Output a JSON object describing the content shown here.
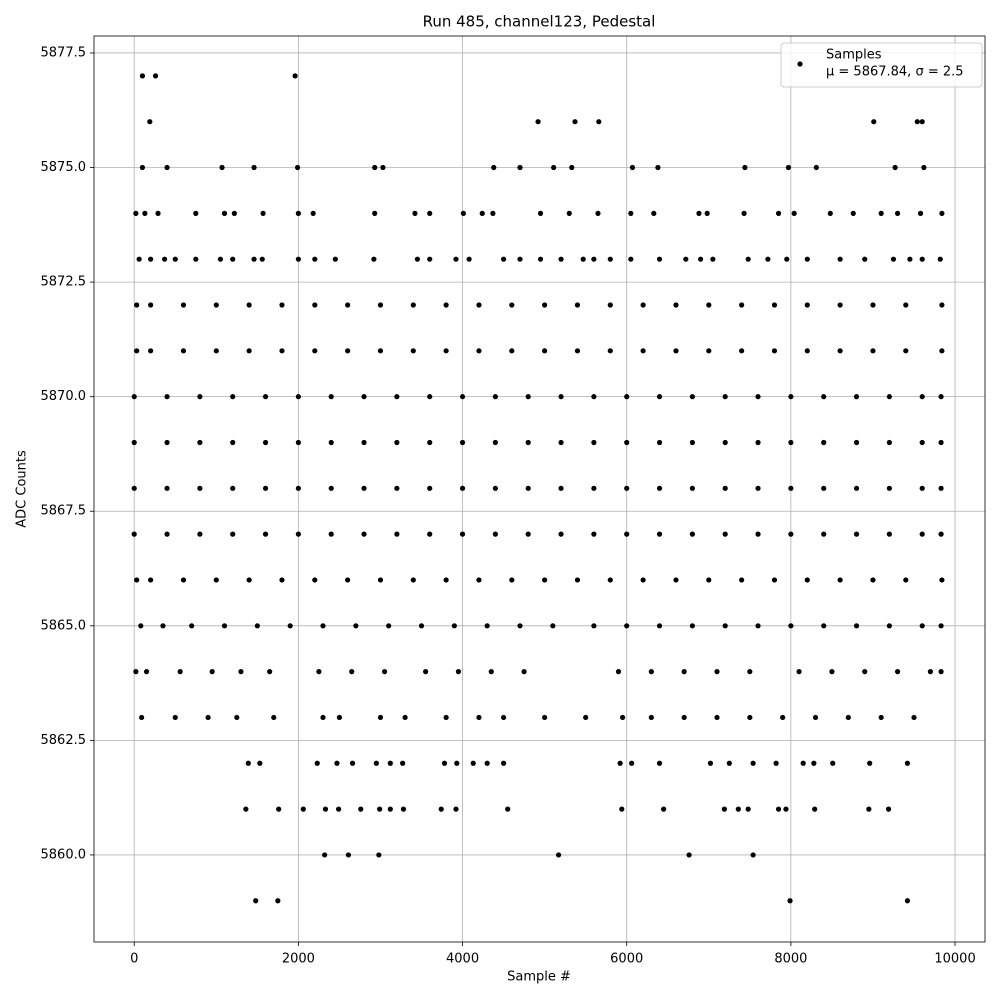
{
  "chart_data": {
    "type": "scatter",
    "title": "Run 485, channel123, Pedestal",
    "xlabel": "Sample #",
    "ylabel": "ADC Counts",
    "xlim": [
      -490,
      10365
    ],
    "ylim": [
      5858.1,
      5877.87
    ],
    "xticks": [
      0,
      2000,
      4000,
      6000,
      8000,
      10000
    ],
    "yticks": [
      {
        "value": 5860,
        "label": "5860.0"
      },
      {
        "value": 5862.5,
        "label": "5862.5"
      },
      {
        "value": 5865,
        "label": "5865.0"
      },
      {
        "value": 5867.5,
        "label": "5867.5"
      },
      {
        "value": 5870,
        "label": "5870.0"
      },
      {
        "value": 5872.5,
        "label": "5872.5"
      },
      {
        "value": 5875,
        "label": "5875.0"
      },
      {
        "value": 5877.5,
        "label": "5877.5"
      }
    ],
    "grid": true,
    "legend_position": "upper right",
    "series": [
      {
        "name": "Samples",
        "label": "μ = 5867.84, σ = 2.5",
        "color": "#000000",
        "x": [
          100,
          260,
          1960,
          190,
          4920,
          5370,
          5660,
          9010,
          9540,
          9600,
          100,
          400,
          1070,
          1460,
          1990,
          2930,
          3030,
          4380,
          4700,
          5110,
          5330,
          6070,
          6380,
          7440,
          7970,
          8310,
          9270,
          9620,
          20,
          130,
          290,
          750,
          1100,
          1220,
          1570,
          2000,
          2180,
          2930,
          3420,
          3600,
          4010,
          4240,
          4370,
          4950,
          5300,
          5650,
          6050,
          6330,
          6880,
          6980,
          7430,
          7850,
          8040,
          8480,
          8760,
          9100,
          9300,
          9580,
          9840,
          60,
          200,
          370,
          500,
          750,
          1050,
          1200,
          1460,
          1560,
          2000,
          2200,
          2450,
          2920,
          3450,
          3600,
          3920,
          4080,
          4500,
          4700,
          4950,
          5200,
          5470,
          5600,
          5800,
          6050,
          6400,
          6720,
          6900,
          7050,
          7480,
          7720,
          7950,
          8200,
          8600,
          8900,
          9250,
          9450,
          9600,
          9820,
          30,
          200,
          600,
          1000,
          1400,
          1800,
          2200,
          2600,
          3000,
          3400,
          3800,
          4200,
          4600,
          5000,
          5400,
          5800,
          6200,
          6600,
          7000,
          7400,
          7800,
          8200,
          8600,
          9000,
          9400,
          9840,
          30,
          200,
          600,
          1000,
          1400,
          1800,
          2200,
          2600,
          3000,
          3400,
          3800,
          4200,
          4600,
          5000,
          5400,
          5800,
          6200,
          6600,
          7000,
          7400,
          7800,
          8200,
          8600,
          9000,
          9400,
          9840,
          0,
          400,
          800,
          1200,
          1600,
          2000,
          2400,
          2800,
          3200,
          3600,
          4000,
          4400,
          4800,
          5200,
          5600,
          6000,
          6400,
          6800,
          7200,
          7600,
          8000,
          8400,
          8800,
          9200,
          9600,
          9830,
          0,
          400,
          800,
          1200,
          1600,
          2000,
          2400,
          2800,
          3200,
          3600,
          4000,
          4400,
          4800,
          5200,
          5600,
          6000,
          6400,
          6800,
          7200,
          7600,
          8000,
          8400,
          8800,
          9200,
          9600,
          9830,
          0,
          400,
          800,
          1200,
          1600,
          2000,
          2400,
          2800,
          3200,
          3600,
          4000,
          4400,
          4800,
          5200,
          5600,
          6000,
          6400,
          6800,
          7200,
          7600,
          8000,
          8400,
          8800,
          9200,
          9600,
          9830,
          0,
          400,
          800,
          1200,
          1600,
          2000,
          2400,
          2800,
          3200,
          3600,
          4000,
          4400,
          4800,
          5200,
          5600,
          6000,
          6400,
          6800,
          7200,
          7600,
          8000,
          8400,
          8800,
          9200,
          9600,
          9830,
          30,
          200,
          600,
          1000,
          1400,
          1800,
          2200,
          2600,
          3000,
          3400,
          3800,
          4200,
          4600,
          5000,
          5400,
          5800,
          6200,
          6600,
          7000,
          7400,
          7800,
          8200,
          8600,
          9000,
          9400,
          9840,
          80,
          350,
          700,
          1100,
          1500,
          1900,
          2300,
          2700,
          3100,
          3500,
          3900,
          4300,
          4700,
          5100,
          5600,
          6000,
          6400,
          6800,
          7200,
          7600,
          8000,
          8400,
          8800,
          9200,
          9600,
          9830,
          20,
          150,
          560,
          950,
          1300,
          1650,
          2250,
          2650,
          3050,
          3550,
          3950,
          4350,
          4750,
          5900,
          6300,
          6700,
          7100,
          7500,
          8100,
          8500,
          8900,
          9300,
          9700,
          9830,
          90,
          500,
          900,
          1250,
          1700,
          2300,
          2500,
          3000,
          3300,
          3800,
          4200,
          4500,
          5000,
          5500,
          5950,
          6300,
          6700,
          7100,
          7500,
          7900,
          8300,
          8700,
          9100,
          9500,
          1390,
          1530,
          2230,
          2470,
          2660,
          2950,
          3120,
          3270,
          3780,
          3930,
          4130,
          4300,
          4500,
          5920,
          6060,
          6400,
          7020,
          7250,
          7540,
          7820,
          8150,
          8280,
          8510,
          8960,
          9420,
          1360,
          1760,
          2060,
          2330,
          2490,
          2760,
          2990,
          3120,
          3280,
          3740,
          3920,
          4550,
          5940,
          6450,
          7190,
          7360,
          7480,
          7850,
          7940,
          8290,
          8950,
          9190,
          2320,
          2610,
          2980,
          5170,
          6760,
          7540,
          1480,
          1750,
          7990,
          9420
        ],
        "values": [
          5877,
          5877,
          5877,
          5876,
          5876,
          5876,
          5876,
          5876,
          5876,
          5876,
          5875,
          5875,
          5875,
          5875,
          5875,
          5875,
          5875,
          5875,
          5875,
          5875,
          5875,
          5875,
          5875,
          5875,
          5875,
          5875,
          5875,
          5875,
          5874,
          5874,
          5874,
          5874,
          5874,
          5874,
          5874,
          5874,
          5874,
          5874,
          5874,
          5874,
          5874,
          5874,
          5874,
          5874,
          5874,
          5874,
          5874,
          5874,
          5874,
          5874,
          5874,
          5874,
          5874,
          5874,
          5874,
          5874,
          5874,
          5874,
          5874,
          5873,
          5873,
          5873,
          5873,
          5873,
          5873,
          5873,
          5873,
          5873,
          5873,
          5873,
          5873,
          5873,
          5873,
          5873,
          5873,
          5873,
          5873,
          5873,
          5873,
          5873,
          5873,
          5873,
          5873,
          5873,
          5873,
          5873,
          5873,
          5873,
          5873,
          5873,
          5873,
          5873,
          5873,
          5873,
          5873,
          5873,
          5873,
          5873,
          5872,
          5872,
          5872,
          5872,
          5872,
          5872,
          5872,
          5872,
          5872,
          5872,
          5872,
          5872,
          5872,
          5872,
          5872,
          5872,
          5872,
          5872,
          5872,
          5872,
          5872,
          5872,
          5872,
          5872,
          5872,
          5872,
          5871,
          5871,
          5871,
          5871,
          5871,
          5871,
          5871,
          5871,
          5871,
          5871,
          5871,
          5871,
          5871,
          5871,
          5871,
          5871,
          5871,
          5871,
          5871,
          5871,
          5871,
          5871,
          5871,
          5871,
          5871,
          5871,
          5870,
          5870,
          5870,
          5870,
          5870,
          5870,
          5870,
          5870,
          5870,
          5870,
          5870,
          5870,
          5870,
          5870,
          5870,
          5870,
          5870,
          5870,
          5870,
          5870,
          5870,
          5870,
          5870,
          5870,
          5870,
          5870,
          5869,
          5869,
          5869,
          5869,
          5869,
          5869,
          5869,
          5869,
          5869,
          5869,
          5869,
          5869,
          5869,
          5869,
          5869,
          5869,
          5869,
          5869,
          5869,
          5869,
          5869,
          5869,
          5869,
          5869,
          5869,
          5869,
          5868,
          5868,
          5868,
          5868,
          5868,
          5868,
          5868,
          5868,
          5868,
          5868,
          5868,
          5868,
          5868,
          5868,
          5868,
          5868,
          5868,
          5868,
          5868,
          5868,
          5868,
          5868,
          5868,
          5868,
          5868,
          5868,
          5867,
          5867,
          5867,
          5867,
          5867,
          5867,
          5867,
          5867,
          5867,
          5867,
          5867,
          5867,
          5867,
          5867,
          5867,
          5867,
          5867,
          5867,
          5867,
          5867,
          5867,
          5867,
          5867,
          5867,
          5867,
          5867,
          5866,
          5866,
          5866,
          5866,
          5866,
          5866,
          5866,
          5866,
          5866,
          5866,
          5866,
          5866,
          5866,
          5866,
          5866,
          5866,
          5866,
          5866,
          5866,
          5866,
          5866,
          5866,
          5866,
          5866,
          5866,
          5866,
          5865,
          5865,
          5865,
          5865,
          5865,
          5865,
          5865,
          5865,
          5865,
          5865,
          5865,
          5865,
          5865,
          5865,
          5865,
          5865,
          5865,
          5865,
          5865,
          5865,
          5865,
          5865,
          5865,
          5865,
          5865,
          5865,
          5864,
          5864,
          5864,
          5864,
          5864,
          5864,
          5864,
          5864,
          5864,
          5864,
          5864,
          5864,
          5864,
          5864,
          5864,
          5864,
          5864,
          5864,
          5864,
          5864,
          5864,
          5864,
          5864,
          5864,
          5863,
          5863,
          5863,
          5863,
          5863,
          5863,
          5863,
          5863,
          5863,
          5863,
          5863,
          5863,
          5863,
          5863,
          5863,
          5863,
          5863,
          5863,
          5863,
          5863,
          5863,
          5863,
          5863,
          5863,
          5862,
          5862,
          5862,
          5862,
          5862,
          5862,
          5862,
          5862,
          5862,
          5862,
          5862,
          5862,
          5862,
          5862,
          5862,
          5862,
          5862,
          5862,
          5862,
          5862,
          5862,
          5862,
          5862,
          5862,
          5862,
          5861,
          5861,
          5861,
          5861,
          5861,
          5861,
          5861,
          5861,
          5861,
          5861,
          5861,
          5861,
          5861,
          5861,
          5861,
          5861,
          5861,
          5861,
          5861,
          5861,
          5861,
          5861,
          5860,
          5860,
          5860,
          5860,
          5860,
          5860,
          5859,
          5859,
          5859,
          5859
        ]
      }
    ]
  }
}
